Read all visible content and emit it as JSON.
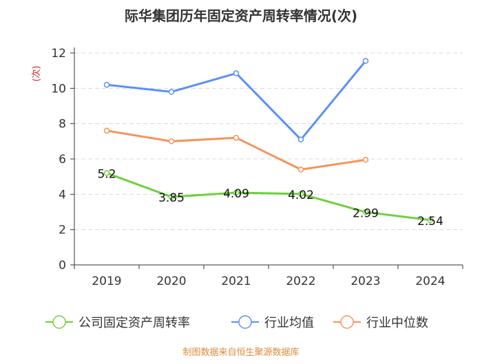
{
  "chart_data": {
    "type": "line",
    "title": "际华集团历年固定资产周转率情况(次)",
    "ylabel": "(次)",
    "xlabel": "",
    "ylim": [
      0,
      12
    ],
    "yticks": [
      0,
      2,
      4,
      6,
      8,
      10,
      12
    ],
    "categories": [
      "2019",
      "2020",
      "2021",
      "2022",
      "2023",
      "2024"
    ],
    "grid": true,
    "legend_position": "bottom",
    "series": [
      {
        "name": "公司固定资产周转率",
        "color": "#6fcf3c",
        "values": [
          5.2,
          3.85,
          4.09,
          4.02,
          2.99,
          2.54
        ],
        "labels": [
          "5.2",
          "3.85",
          "4.09",
          "4.02",
          "2.99",
          "2.54"
        ]
      },
      {
        "name": "行业均值",
        "color": "#5b8ff9",
        "values": [
          10.2,
          9.8,
          10.85,
          7.1,
          11.55,
          null
        ]
      },
      {
        "name": "行业中位数",
        "color": "#f7925a",
        "values": [
          7.6,
          7.0,
          7.2,
          5.4,
          5.95,
          null
        ]
      }
    ],
    "source": "制图数据来自恒生聚源数据库"
  }
}
